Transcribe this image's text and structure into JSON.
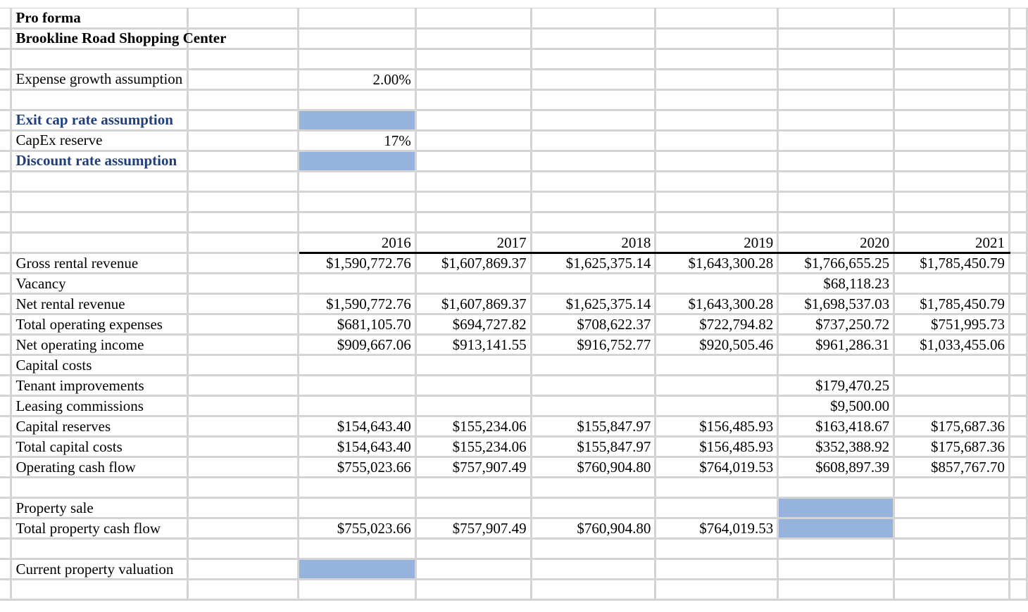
{
  "header": {
    "title": "Pro forma",
    "subtitle": "Brookline Road Shopping Center"
  },
  "assumptions": {
    "expense_growth": {
      "label": "Expense growth assumption",
      "value": "2.00%"
    },
    "exit_cap_rate": {
      "label": "Exit cap rate assumption",
      "value": "",
      "fill_color": "#95b3dd"
    },
    "capex_reserve": {
      "label": "CapEx reserve",
      "value": "17%"
    },
    "discount_rate": {
      "label": "Discount rate assumption",
      "value": "",
      "fill_color": "#95b3dd"
    }
  },
  "years": [
    "2016",
    "2017",
    "2018",
    "2019",
    "2020",
    "2021"
  ],
  "rows": [
    {
      "label": "Gross rental revenue",
      "values": [
        "$1,590,772.76",
        "$1,607,869.37",
        "$1,625,375.14",
        "$1,643,300.28",
        "$1,766,655.25",
        "$1,785,450.79"
      ]
    },
    {
      "label": "Vacancy",
      "values": [
        "",
        "",
        "",
        "",
        "$68,118.23",
        ""
      ]
    },
    {
      "label": "Net rental revenue",
      "values": [
        "$1,590,772.76",
        "$1,607,869.37",
        "$1,625,375.14",
        "$1,643,300.28",
        "$1,698,537.03",
        "$1,785,450.79"
      ]
    },
    {
      "label": "Total operating expenses",
      "values": [
        "$681,105.70",
        "$694,727.82",
        "$708,622.37",
        "$722,794.82",
        "$737,250.72",
        "$751,995.73"
      ]
    },
    {
      "label": "Net operating income",
      "values": [
        "$909,667.06",
        "$913,141.55",
        "$916,752.77",
        "$920,505.46",
        "$961,286.31",
        "$1,033,455.06"
      ]
    },
    {
      "label": "Capital costs",
      "values": [
        "",
        "",
        "",
        "",
        "",
        ""
      ]
    },
    {
      "label": "Tenant improvements",
      "values": [
        "",
        "",
        "",
        "",
        "$179,470.25",
        ""
      ]
    },
    {
      "label": "Leasing commissions",
      "values": [
        "",
        "",
        "",
        "",
        "$9,500.00",
        ""
      ]
    },
    {
      "label": "Capital reserves",
      "values": [
        "$154,643.40",
        "$155,234.06",
        "$155,847.97",
        "$156,485.93",
        "$163,418.67",
        "$175,687.36"
      ]
    },
    {
      "label": "Total capital costs",
      "values": [
        "$154,643.40",
        "$155,234.06",
        "$155,847.97",
        "$156,485.93",
        "$352,388.92",
        "$175,687.36"
      ]
    },
    {
      "label": "Operating cash flow",
      "values": [
        "$755,023.66",
        "$757,907.49",
        "$760,904.80",
        "$764,019.53",
        "$608,897.39",
        "$857,767.70"
      ]
    }
  ],
  "sale": {
    "property_sale": {
      "label": "Property sale",
      "values": [
        "",
        "",
        "",
        "",
        "",
        ""
      ]
    },
    "total_property_cash_flow": {
      "label": "Total property cash flow",
      "values": [
        "$755,023.66",
        "$757,907.49",
        "$760,904.80",
        "$764,019.53",
        "",
        ""
      ]
    },
    "fill_color": "#95b3dd"
  },
  "valuation": {
    "label": "Current property valuation",
    "value": ""
  },
  "colors": {
    "gridline": "#d4d4d4",
    "input_fill": "#95b3dd",
    "label_blue": "#203f7a"
  }
}
